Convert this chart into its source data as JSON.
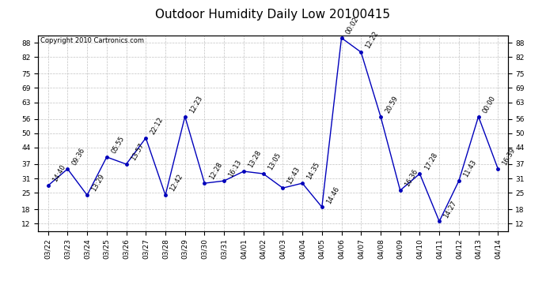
{
  "title": "Outdoor Humidity Daily Low 20100415",
  "copyright": "Copyright 2010 Cartronics.com",
  "x_labels": [
    "03/22",
    "03/23",
    "03/24",
    "03/25",
    "03/26",
    "03/27",
    "03/28",
    "03/29",
    "03/30",
    "03/31",
    "04/01",
    "04/02",
    "04/03",
    "04/04",
    "04/05",
    "04/06",
    "04/07",
    "04/08",
    "04/09",
    "04/10",
    "04/11",
    "04/12",
    "04/13",
    "04/14"
  ],
  "y_values": [
    28,
    35,
    24,
    40,
    37,
    48,
    24,
    57,
    29,
    30,
    34,
    33,
    27,
    29,
    19,
    90,
    84,
    57,
    26,
    33,
    13,
    30,
    57,
    35
  ],
  "point_labels": [
    "14:40",
    "09:36",
    "13:29",
    "05:55",
    "13:57",
    "22:12",
    "12:42",
    "12:23",
    "12:28",
    "16:13",
    "13:28",
    "13:05",
    "15:43",
    "14:35",
    "14:46",
    "00:02",
    "12:22",
    "20:59",
    "16:36",
    "17:28",
    "14:27",
    "11:43",
    "00:00",
    "16:39"
  ],
  "ylim": [
    9,
    91
  ],
  "yticks": [
    12,
    18,
    25,
    31,
    37,
    44,
    50,
    56,
    63,
    69,
    75,
    82,
    88
  ],
  "line_color": "#0000bb",
  "marker_color": "#0000bb",
  "bg_color": "#ffffff",
  "grid_color": "#bbbbbb",
  "title_fontsize": 11,
  "label_fontsize": 6,
  "tick_fontsize": 6.5,
  "copyright_fontsize": 6
}
